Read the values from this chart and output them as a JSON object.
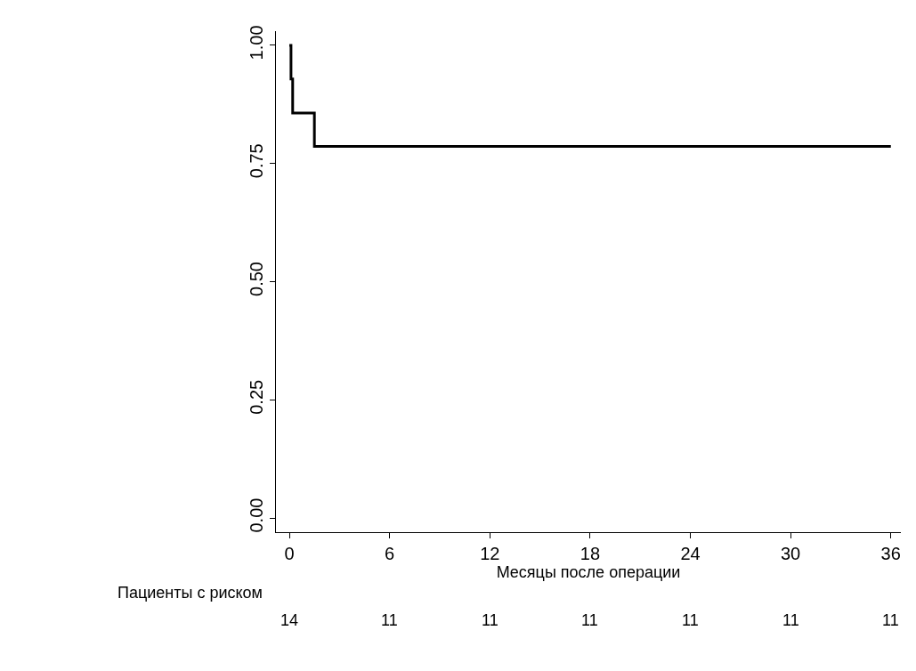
{
  "chart_data": {
    "type": "step",
    "xlabel": "Месяцы после операции",
    "x": [
      0,
      0.1,
      0.2,
      1.5,
      36
    ],
    "series": [
      {
        "color": "#000000",
        "values": [
          1.0,
          0.929,
          0.857,
          0.786,
          0.786
        ]
      }
    ],
    "xlim": [
      -0.8,
      36.6
    ],
    "xticks": [
      0,
      6,
      12,
      18,
      24,
      30,
      36
    ],
    "ylim": [
      -0.03,
      1.03
    ],
    "yticks": [
      {
        "value": 0,
        "label": "0.00"
      },
      {
        "value": 0.25,
        "label": "0.25"
      },
      {
        "value": 0.5,
        "label": "0.50"
      },
      {
        "value": 0.75,
        "label": "0.75"
      },
      {
        "value": 1,
        "label": "1.00"
      }
    ],
    "marker": "none",
    "line_style": "solid",
    "annotations": [
      "Пациенты с риском",
      "14",
      "11",
      "11",
      "11",
      "11",
      "11",
      "11"
    ]
  }
}
